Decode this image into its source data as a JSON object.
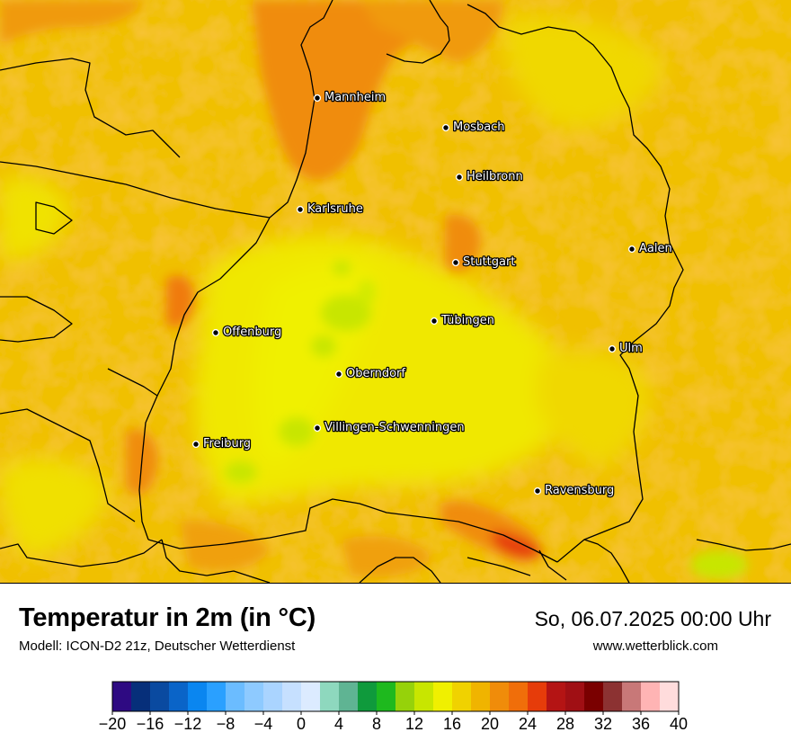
{
  "map": {
    "cities": [
      {
        "name": "Mannheim",
        "icon": "city-dot"
      },
      {
        "name": "Mosbach",
        "icon": "city-dot"
      },
      {
        "name": "Heilbronn",
        "icon": "city-dot"
      },
      {
        "name": "Karlsruhe",
        "icon": "city-dot"
      },
      {
        "name": "Aalen",
        "icon": "city-dot"
      },
      {
        "name": "Stuttgart",
        "icon": "city-dot"
      },
      {
        "name": "Tübingen",
        "icon": "city-dot"
      },
      {
        "name": "Offenburg",
        "icon": "city-dot"
      },
      {
        "name": "Ulm",
        "icon": "city-dot"
      },
      {
        "name": "Oberndorf",
        "icon": "city-dot"
      },
      {
        "name": "Villingen-Schwenningen",
        "icon": "city-dot"
      },
      {
        "name": "Freiburg",
        "icon": "city-dot"
      },
      {
        "name": "Ravensburg",
        "icon": "city-dot"
      }
    ]
  },
  "footer": {
    "title": "Temperatur in 2m (in °C)",
    "subtitle": "Modell: ICON-D2 21z, Deutscher Wetterdienst",
    "datetime": "So, 06.07.2025 00:00 Uhr",
    "website": "www.wetterblick.com"
  },
  "legend": {
    "min": -20,
    "max": 40,
    "step": 2,
    "colors": [
      "#2e0a82",
      "#062f7a",
      "#0a4aa0",
      "#0a64c8",
      "#0a86f0",
      "#2aa0ff",
      "#6bbcff",
      "#8ecaff",
      "#aad4ff",
      "#c6e0ff",
      "#dcebff",
      "#8ed8be",
      "#5fb493",
      "#0f9a3c",
      "#1eb91e",
      "#96d20a",
      "#c8e600",
      "#f0f000",
      "#f0d200",
      "#f0b400",
      "#f08c0a",
      "#f06e0a",
      "#e63c0a",
      "#b41414",
      "#a00f14",
      "#7a0000",
      "#8c3232",
      "#c87878",
      "#ffb4b4",
      "#ffdcdc"
    ],
    "tick_labels": [
      "−20",
      "−16",
      "−12",
      "−8",
      "−4",
      "0",
      "4",
      "8",
      "12",
      "16",
      "20",
      "24",
      "28",
      "32",
      "36",
      "40"
    ]
  }
}
